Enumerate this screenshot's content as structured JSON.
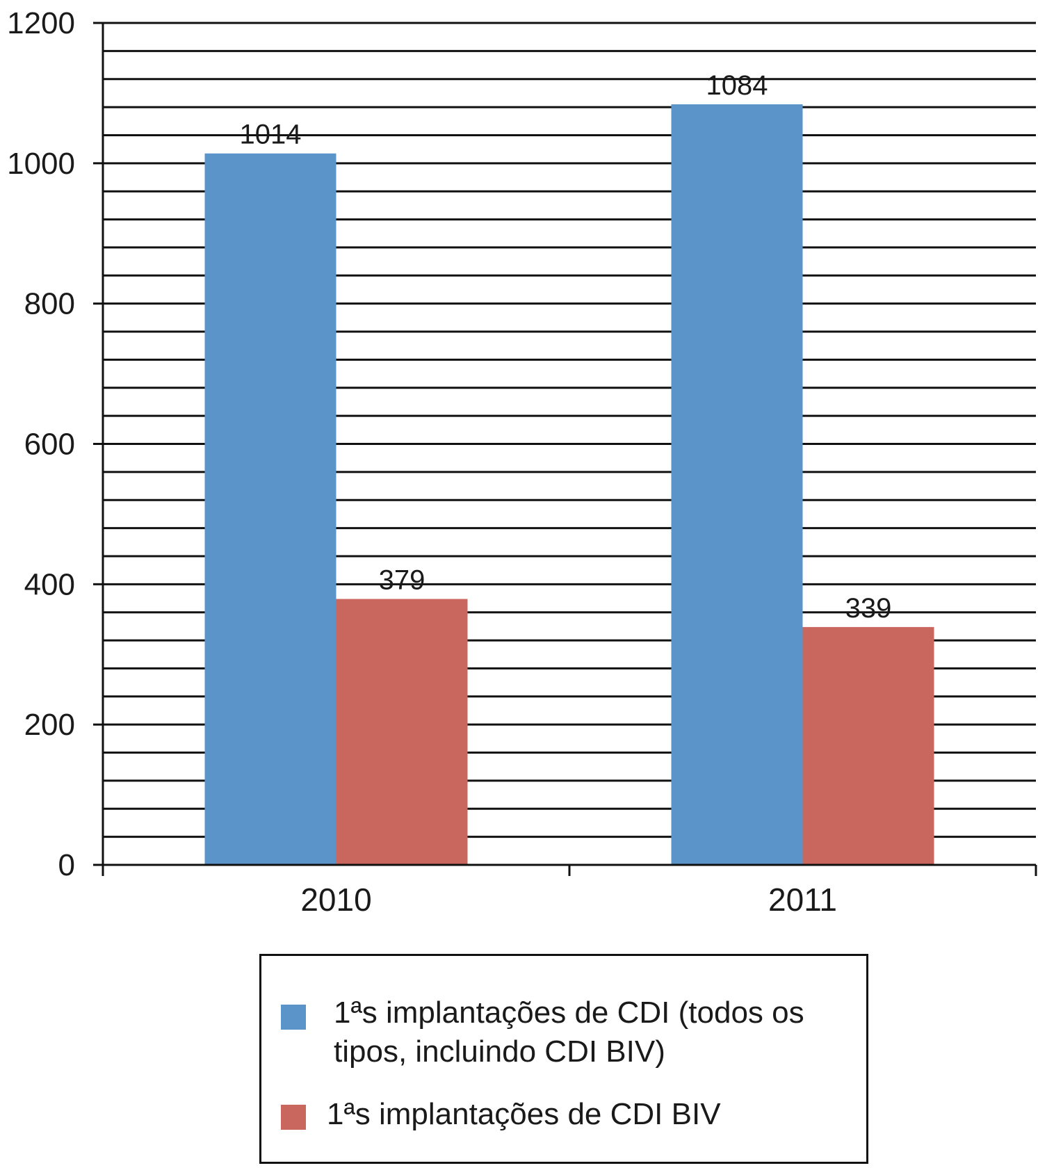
{
  "chart_data": {
    "type": "bar",
    "categories": [
      "2010",
      "2011"
    ],
    "series": [
      {
        "name": "1ªs implantações de CDI (todos os tipos, incluindo CDI BIV)",
        "values": [
          1014,
          1084
        ],
        "color": "#5b94c8"
      },
      {
        "name": "1ªs implantações de CDI BIV",
        "values": [
          379,
          339
        ],
        "color": "#c9675f"
      }
    ],
    "title": "",
    "xlabel": "",
    "ylabel": "",
    "ylim": [
      0,
      1200
    ],
    "yticks": [
      "0",
      "200",
      "400",
      "600",
      "800",
      "1000",
      "1200"
    ],
    "grid": true,
    "legend_position": "bottom"
  }
}
